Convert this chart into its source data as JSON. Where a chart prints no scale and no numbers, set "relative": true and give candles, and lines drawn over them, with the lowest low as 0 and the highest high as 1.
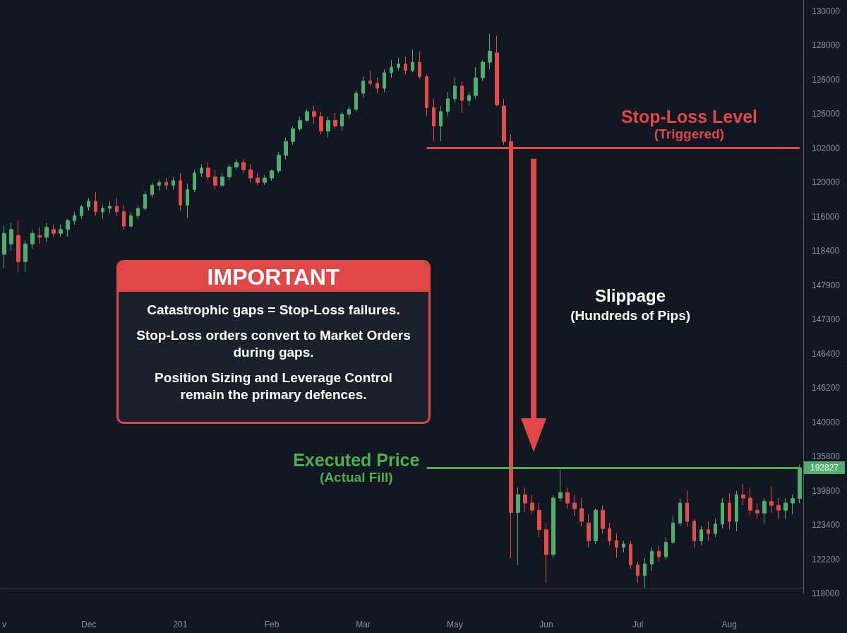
{
  "chart_data": {
    "type": "candlestick",
    "relative": true,
    "categories": [
      "v",
      null,
      null,
      null,
      null,
      null,
      null,
      null,
      null,
      null,
      null,
      null,
      "Dec",
      null,
      null,
      null,
      null,
      null,
      null,
      null,
      null,
      null,
      null,
      null,
      null,
      "201",
      null,
      null,
      null,
      null,
      null,
      null,
      null,
      null,
      null,
      null,
      null,
      null,
      "Feb",
      null,
      null,
      null,
      null,
      null,
      null,
      null,
      null,
      null,
      null,
      null,
      null,
      "Mar",
      null,
      null,
      null,
      null,
      null,
      null,
      null,
      null,
      null,
      null,
      null,
      null,
      "May",
      null,
      null,
      null,
      null,
      null,
      null,
      null,
      null,
      null,
      null,
      null,
      null,
      "Jun",
      null,
      null,
      null,
      null,
      null,
      null,
      null,
      null,
      null,
      null,
      null,
      null,
      "Jul",
      null,
      null,
      null,
      null,
      null,
      null,
      null,
      null,
      null,
      null,
      null,
      null,
      "Aug",
      null,
      null,
      null,
      null,
      null,
      null,
      null,
      null,
      null,
      null
    ],
    "ohlc": [
      [
        0.602,
        0.653,
        0.577,
        0.64
      ],
      [
        0.621,
        0.659,
        0.608,
        0.647
      ],
      [
        0.636,
        0.663,
        0.57,
        0.589
      ],
      [
        0.589,
        0.628,
        0.57,
        0.621
      ],
      [
        0.621,
        0.647,
        0.612,
        0.64
      ],
      [
        0.636,
        0.651,
        0.621,
        0.633
      ],
      [
        0.633,
        0.659,
        0.625,
        0.651
      ],
      [
        0.647,
        0.656,
        0.634,
        0.64
      ],
      [
        0.64,
        0.656,
        0.634,
        0.647
      ],
      [
        0.647,
        0.666,
        0.634,
        0.663
      ],
      [
        0.663,
        0.679,
        0.656,
        0.672
      ],
      [
        0.672,
        0.691,
        0.666,
        0.688
      ],
      [
        0.688,
        0.704,
        0.681,
        0.698
      ],
      [
        0.698,
        0.714,
        0.672,
        0.679
      ],
      [
        0.679,
        0.691,
        0.666,
        0.685
      ],
      [
        0.685,
        0.698,
        0.676,
        0.689
      ],
      [
        0.689,
        0.704,
        0.672,
        0.679
      ],
      [
        0.679,
        0.691,
        0.647,
        0.653
      ],
      [
        0.653,
        0.679,
        0.651,
        0.672
      ],
      [
        0.672,
        0.691,
        0.666,
        0.685
      ],
      [
        0.685,
        0.717,
        0.681,
        0.71
      ],
      [
        0.71,
        0.732,
        0.704,
        0.727
      ],
      [
        0.727,
        0.736,
        0.717,
        0.732
      ],
      [
        0.732,
        0.74,
        0.719,
        0.727
      ],
      [
        0.727,
        0.742,
        0.719,
        0.735
      ],
      [
        0.735,
        0.749,
        0.681,
        0.691
      ],
      [
        0.691,
        0.73,
        0.668,
        0.719
      ],
      [
        0.719,
        0.755,
        0.714,
        0.749
      ],
      [
        0.749,
        0.765,
        0.742,
        0.758
      ],
      [
        0.758,
        0.768,
        0.736,
        0.742
      ],
      [
        0.742,
        0.755,
        0.719,
        0.727
      ],
      [
        0.727,
        0.749,
        0.723,
        0.742
      ],
      [
        0.742,
        0.765,
        0.736,
        0.76
      ],
      [
        0.76,
        0.774,
        0.755,
        0.768
      ],
      [
        0.768,
        0.774,
        0.749,
        0.755
      ],
      [
        0.755,
        0.765,
        0.732,
        0.74
      ],
      [
        0.74,
        0.749,
        0.727,
        0.732
      ],
      [
        0.732,
        0.745,
        0.727,
        0.74
      ],
      [
        0.74,
        0.755,
        0.735,
        0.753
      ],
      [
        0.753,
        0.787,
        0.749,
        0.781
      ],
      [
        0.781,
        0.813,
        0.774,
        0.806
      ],
      [
        0.806,
        0.834,
        0.8,
        0.829
      ],
      [
        0.829,
        0.851,
        0.825,
        0.844
      ],
      [
        0.844,
        0.864,
        0.842,
        0.86
      ],
      [
        0.86,
        0.87,
        0.838,
        0.851
      ],
      [
        0.851,
        0.86,
        0.819,
        0.825
      ],
      [
        0.825,
        0.851,
        0.813,
        0.844
      ],
      [
        0.844,
        0.857,
        0.829,
        0.834
      ],
      [
        0.834,
        0.86,
        0.825,
        0.855
      ],
      [
        0.855,
        0.87,
        0.847,
        0.864
      ],
      [
        0.864,
        0.898,
        0.86,
        0.893
      ],
      [
        0.893,
        0.923,
        0.885,
        0.915
      ],
      [
        0.915,
        0.934,
        0.906,
        0.911
      ],
      [
        0.911,
        0.921,
        0.893,
        0.902
      ],
      [
        0.902,
        0.936,
        0.895,
        0.93
      ],
      [
        0.93,
        0.953,
        0.921,
        0.94
      ],
      [
        0.94,
        0.957,
        0.934,
        0.946
      ],
      [
        0.946,
        0.959,
        0.927,
        0.934
      ],
      [
        0.934,
        0.972,
        0.931,
        0.949
      ],
      [
        0.949,
        0.969,
        0.918,
        0.923
      ],
      [
        0.923,
        0.927,
        0.851,
        0.867
      ],
      [
        0.867,
        0.883,
        0.806,
        0.834
      ],
      [
        0.834,
        0.87,
        0.806,
        0.86
      ],
      [
        0.86,
        0.895,
        0.851,
        0.883
      ],
      [
        0.883,
        0.921,
        0.876,
        0.906
      ],
      [
        0.906,
        0.915,
        0.857,
        0.88
      ],
      [
        0.88,
        0.895,
        0.87,
        0.889
      ],
      [
        0.889,
        0.94,
        0.883,
        0.921
      ],
      [
        0.921,
        0.953,
        0.915,
        0.949
      ],
      [
        0.949,
        1.0,
        0.936,
        0.969
      ],
      [
        0.966,
        0.997,
        0.87,
        0.872
      ],
      [
        0.87,
        0.883,
        0.8,
        0.806
      ],
      [
        0.806,
        0.819,
        0.054,
        0.136
      ],
      [
        0.136,
        0.181,
        0.041,
        0.168
      ],
      [
        0.168,
        0.181,
        0.136,
        0.153
      ],
      [
        0.153,
        0.168,
        0.133,
        0.14
      ],
      [
        0.14,
        0.153,
        0.092,
        0.105
      ],
      [
        0.105,
        0.117,
        0.009,
        0.06
      ],
      [
        0.06,
        0.168,
        0.054,
        0.162
      ],
      [
        0.162,
        0.213,
        0.156,
        0.172
      ],
      [
        0.172,
        0.181,
        0.143,
        0.153
      ],
      [
        0.153,
        0.168,
        0.13,
        0.143
      ],
      [
        0.143,
        0.162,
        0.111,
        0.12
      ],
      [
        0.117,
        0.133,
        0.073,
        0.085
      ],
      [
        0.085,
        0.143,
        0.079,
        0.14
      ],
      [
        0.14,
        0.149,
        0.098,
        0.107
      ],
      [
        0.107,
        0.117,
        0.077,
        0.085
      ],
      [
        0.085,
        0.098,
        0.054,
        0.073
      ],
      [
        0.073,
        0.085,
        0.064,
        0.079
      ],
      [
        0.079,
        0.085,
        0.034,
        0.041
      ],
      [
        0.041,
        0.047,
        0.009,
        0.022
      ],
      [
        0.022,
        0.054,
        0,
        0.043
      ],
      [
        0.043,
        0.073,
        0.031,
        0.066
      ],
      [
        0.066,
        0.077,
        0.047,
        0.056
      ],
      [
        0.056,
        0.092,
        0.051,
        0.082
      ],
      [
        0.082,
        0.13,
        0.079,
        0.117
      ],
      [
        0.117,
        0.162,
        0.111,
        0.153
      ],
      [
        0.153,
        0.175,
        0.111,
        0.12
      ],
      [
        0.12,
        0.124,
        0.073,
        0.085
      ],
      [
        0.085,
        0.111,
        0.077,
        0.105
      ],
      [
        0.105,
        0.12,
        0.085,
        0.098
      ],
      [
        0.098,
        0.124,
        0.092,
        0.115
      ],
      [
        0.115,
        0.162,
        0.107,
        0.153
      ],
      [
        0.153,
        0.171,
        0.105,
        0.12
      ],
      [
        0.12,
        0.175,
        0.102,
        0.168
      ],
      [
        0.168,
        0.188,
        0.149,
        0.162
      ],
      [
        0.162,
        0.181,
        0.13,
        0.14
      ],
      [
        0.14,
        0.153,
        0.124,
        0.135
      ],
      [
        0.135,
        0.162,
        0.115,
        0.156
      ],
      [
        0.156,
        0.184,
        0.136,
        0.149
      ],
      [
        0.149,
        0.162,
        0.124,
        0.14
      ],
      [
        0.14,
        0.162,
        0.124,
        0.153
      ],
      [
        0.153,
        0.168,
        0.133,
        0.161
      ],
      [
        0.161,
        0.222,
        0.153,
        0.217
      ]
    ],
    "ref_lines": [
      {
        "axis": "y",
        "value": 0.795,
        "label": "Stop-Loss Level\n(Triggered)",
        "color": "#e04848",
        "line_style": "solid"
      },
      {
        "axis": "y",
        "value": 0.217,
        "label": "Executed Price\n(Actual Fill)",
        "color": "#4caf50",
        "line_style": "solid"
      }
    ],
    "annotations": [
      "IMPORTANT",
      "Catastrophic gaps = Stop-Loss failures.",
      "Stop-Loss orders convert to Market Orders during gaps.",
      "Position Sizing and Leverage Control remain the primary defences.",
      "Slippage",
      "(Hundreds of Pips)",
      "192827",
      "130000",
      "128000",
      "126000",
      "126000",
      "102000",
      "120000",
      "116000",
      "118400",
      "147900",
      "147300",
      "146400",
      "146200",
      "140000",
      "135800",
      "139800",
      "123400",
      "122200",
      "118000"
    ],
    "grid": false
  }
}
